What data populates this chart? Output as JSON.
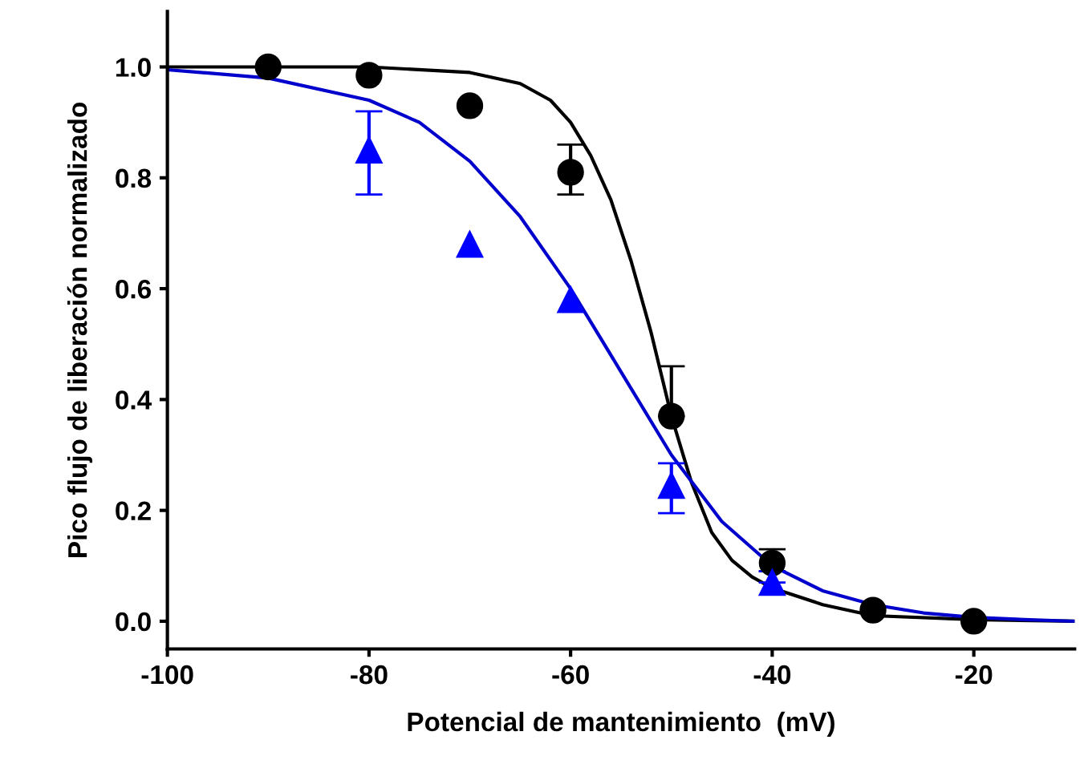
{
  "chart_data": {
    "type": "scatter",
    "xlabel": "Potencial de mantenimiento  (mV)",
    "ylabel": "Pico flujo de liberación normalizado",
    "xlim": [
      -100,
      -10
    ],
    "xticks": [
      -100,
      -80,
      -60,
      -40,
      -20
    ],
    "ylim": [
      -0.05,
      1.1
    ],
    "yticks": [
      {
        "value": 0,
        "label": "0.0"
      },
      0.2,
      0.4,
      0.6,
      0.8,
      {
        "value": 1,
        "label": "1.0"
      }
    ],
    "grid": false,
    "legend": false,
    "series": [
      {
        "type": "line",
        "color": "#000000",
        "marker": "none",
        "x": [
          -100,
          -90,
          -80,
          -70,
          -65,
          -62,
          -60,
          -58,
          -56,
          -54,
          -52,
          -50,
          -48,
          -46,
          -44,
          -42,
          -40,
          -35,
          -30,
          -20,
          -10
        ],
        "values": [
          1.0,
          1.0,
          1.0,
          0.99,
          0.97,
          0.94,
          0.9,
          0.84,
          0.76,
          0.65,
          0.52,
          0.37,
          0.25,
          0.16,
          0.11,
          0.08,
          0.06,
          0.03,
          0.01,
          0.003,
          0.0
        ]
      },
      {
        "type": "line",
        "color": "#0000cc",
        "marker": "none",
        "x": [
          -100,
          -90,
          -80,
          -75,
          -70,
          -65,
          -60,
          -55,
          -50,
          -45,
          -40,
          -35,
          -30,
          -25,
          -20,
          -15,
          -10
        ],
        "values": [
          0.995,
          0.98,
          0.94,
          0.9,
          0.83,
          0.73,
          0.6,
          0.45,
          0.3,
          0.18,
          0.1,
          0.055,
          0.03,
          0.015,
          0.007,
          0.003,
          0.0
        ]
      },
      {
        "color": "#000000",
        "marker": "circle",
        "x": [
          -90,
          -80,
          -70,
          -60,
          -50,
          -40,
          -30,
          -20
        ],
        "values": [
          1.0,
          0.985,
          0.93,
          0.81,
          0.37,
          0.105,
          0.02,
          0.0
        ],
        "errors": [
          null,
          null,
          null,
          [
            0.77,
            0.86
          ],
          [
            0.37,
            0.46
          ],
          [
            0.09,
            0.13
          ],
          null,
          null
        ]
      },
      {
        "color": "#0000ff",
        "marker": "triangle",
        "x": [
          -80,
          -70,
          -60,
          -50,
          -40
        ],
        "values": [
          0.85,
          0.68,
          0.58,
          0.245,
          0.07
        ],
        "errors": [
          [
            0.77,
            0.92
          ],
          null,
          null,
          [
            0.195,
            0.285
          ],
          [
            0.07,
            0.09
          ]
        ]
      }
    ]
  }
}
